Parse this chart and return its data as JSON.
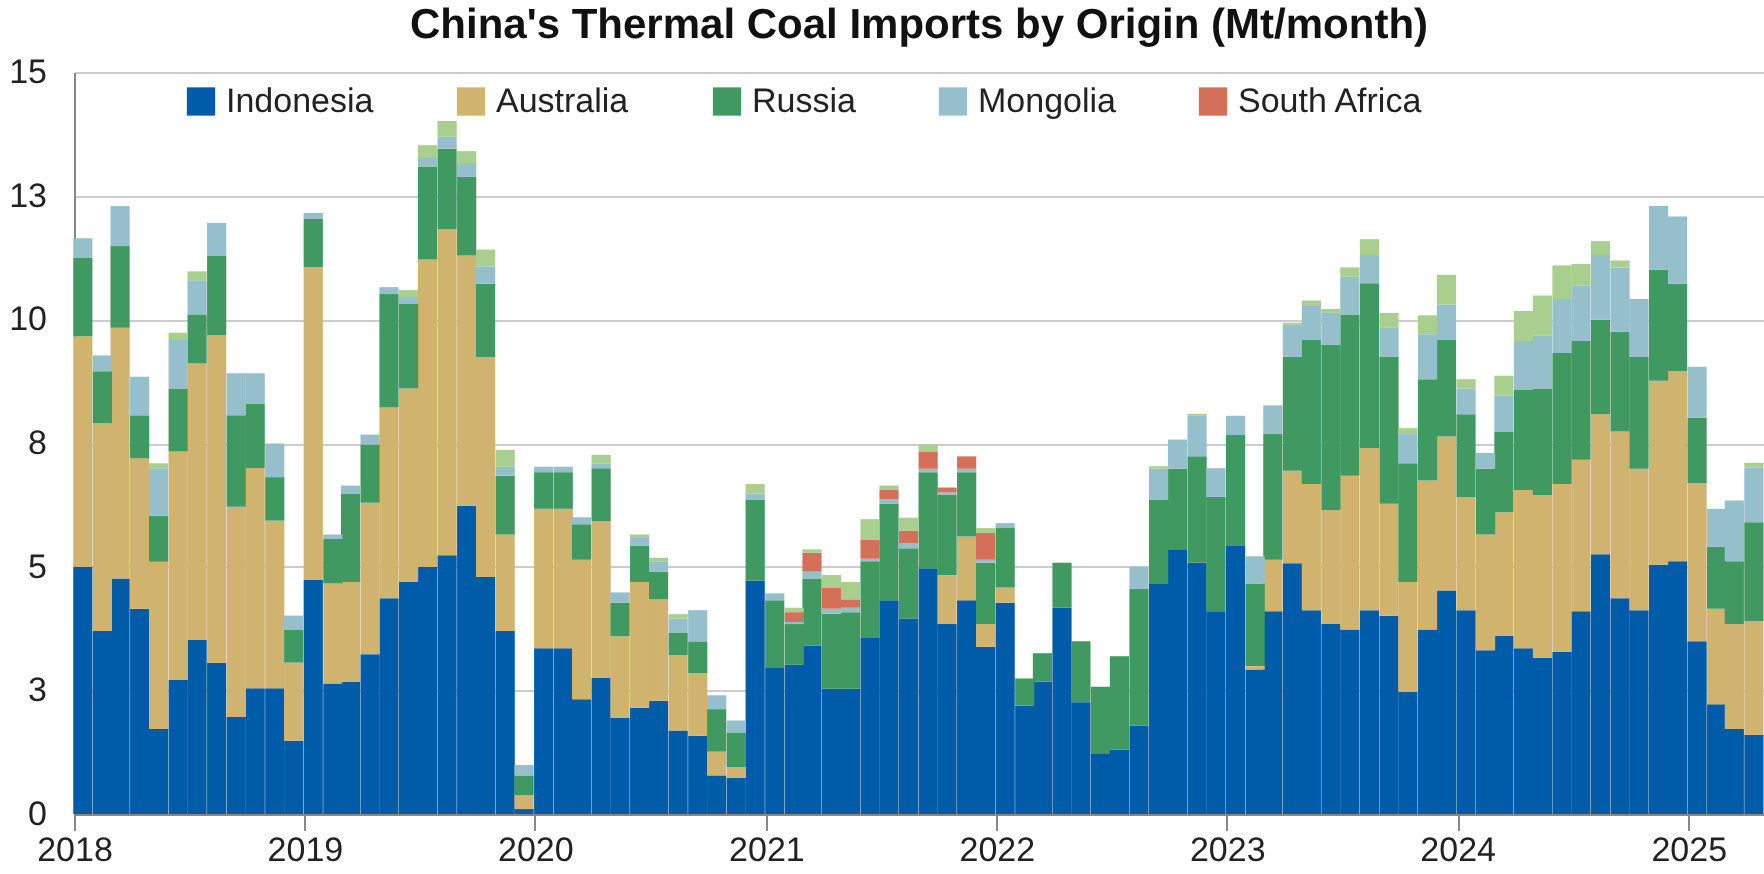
{
  "chart_data": {
    "type": "bar",
    "title": "China's Thermal Coal Imports by Origin (Mt/month)",
    "stacked": true,
    "x": [
      "2018-01-15",
      "2018-02-15",
      "2018-03-15",
      "2018-04-15",
      "2018-05-15",
      "2018-06-15",
      "2018-07-15",
      "2018-08-15",
      "2018-09-15",
      "2018-10-15",
      "2018-11-15",
      "2018-12-15",
      "2019-01-15",
      "2019-02-15",
      "2019-03-15",
      "2019-04-15",
      "2019-05-15",
      "2019-06-15",
      "2019-07-15",
      "2019-08-15",
      "2019-09-15",
      "2019-10-15",
      "2019-11-15",
      "2019-12-15",
      "2020-01-15",
      "2020-02-15",
      "2020-03-15",
      "2020-04-15",
      "2020-05-15",
      "2020-06-15",
      "2020-07-15",
      "2020-08-15",
      "2020-09-15",
      "2020-10-15",
      "2020-11-15",
      "2020-12-15",
      "2021-01-15",
      "2021-02-15",
      "2021-03-15",
      "2021-04-15",
      "2021-05-15",
      "2021-06-15",
      "2021-07-15",
      "2021-08-15",
      "2021-09-15",
      "2021-10-15",
      "2021-11-15",
      "2021-12-15",
      "2022-01-15",
      "2022-02-15",
      "2022-03-15",
      "2022-04-15",
      "2022-05-15",
      "2022-06-15",
      "2022-07-15",
      "2022-08-15",
      "2022-09-15",
      "2022-10-15",
      "2022-11-15",
      "2022-12-15",
      "2023-01-15",
      "2023-02-15",
      "2023-03-15",
      "2023-04-15",
      "2023-05-15",
      "2023-06-15",
      "2023-07-15",
      "2023-08-15",
      "2023-09-15",
      "2023-10-15",
      "2023-11-15",
      "2023-12-15",
      "2024-01-15",
      "2024-02-15",
      "2024-03-15",
      "2024-04-15",
      "2024-05-15",
      "2024-06-15",
      "2024-07-15",
      "2024-08-15",
      "2024-09-15",
      "2024-10-15",
      "2024-11-15",
      "2024-12-15",
      "2025-01-15",
      "2025-02-15",
      "2025-03-15",
      "2025-04-15"
    ],
    "series": [
      {
        "name": "Indonesia",
        "color": "#005ca8",
        "values": [
          5.0,
          3.7,
          4.76,
          4.15,
          1.72,
          2.71,
          3.52,
          3.06,
          1.96,
          2.54,
          2.54,
          1.48,
          4.73,
          2.64,
          2.67,
          3.23,
          4.36,
          4.69,
          5.0,
          5.23,
          6.23,
          4.79,
          3.7,
          0.1,
          3.35,
          3.35,
          2.32,
          2.75,
          1.94,
          2.15,
          2.29,
          1.69,
          1.58,
          0.78,
          0.73,
          4.72,
          2.95,
          3.02,
          3.4,
          2.53,
          2.53,
          3.56,
          4.32,
          3.95,
          4.97,
          3.84,
          4.32,
          3.38,
          4.27,
          2.19,
          2.68,
          4.17,
          2.26,
          1.23,
          1.3,
          1.79,
          4.65,
          5.35,
          5.08,
          4.1,
          5.42,
          2.92,
          4.1,
          5.07,
          4.12,
          3.84,
          3.73,
          4.12,
          4.01,
          2.47,
          3.73,
          4.52,
          4.12,
          3.31,
          3.6,
          3.35,
          3.16,
          3.28,
          4.1,
          5.25,
          4.36,
          4.12,
          5.04,
          5.11,
          3.49,
          2.22,
          1.72,
          1.6
        ]
      },
      {
        "name": "Australia",
        "color": "#cfb36f",
        "values": [
          4.66,
          4.2,
          5.07,
          3.04,
          3.38,
          4.62,
          5.59,
          6.62,
          4.25,
          4.45,
          3.39,
          1.58,
          6.32,
          2.02,
          2.02,
          3.06,
          3.86,
          3.91,
          6.21,
          6.59,
          5.06,
          4.45,
          1.95,
          0.28,
          2.82,
          2.82,
          2.82,
          3.17,
          1.65,
          2.54,
          2.05,
          1.52,
          1.27,
          0.48,
          0.22,
          0,
          0,
          0,
          0,
          0,
          0,
          0,
          0,
          0,
          0,
          0.99,
          1.29,
          0.46,
          0.31,
          0,
          0,
          0,
          0,
          0,
          0,
          0,
          0,
          0,
          0,
          0,
          0,
          0.07,
          1.04,
          1.87,
          2.55,
          2.3,
          3.11,
          3.28,
          2.26,
          2.22,
          3.01,
          3.11,
          2.29,
          2.34,
          2.5,
          3.2,
          3.29,
          3.39,
          3.06,
          2.83,
          3.37,
          2.86,
          3.72,
          3.84,
          3.2,
          1.93,
          2.12,
          2.3
        ]
      },
      {
        "name": "Russia",
        "color": "#3f9960",
        "values": [
          1.58,
          1.05,
          1.65,
          0.87,
          0.93,
          1.27,
          0.99,
          1.61,
          1.85,
          1.3,
          0.88,
          0.67,
          0.98,
          0.9,
          1.79,
          1.18,
          2.29,
          1.71,
          1.88,
          1.63,
          1.59,
          1.48,
          1.19,
          0.4,
          0.74,
          0.74,
          0.72,
          1.07,
          0.68,
          0.73,
          0.56,
          0.46,
          0.64,
          0.86,
          0.7,
          1.64,
          1.37,
          0.82,
          1.36,
          1.52,
          1.55,
          1.55,
          1.95,
          1.42,
          1.94,
          1.62,
          1.3,
          1.24,
          1.2,
          0.55,
          0.57,
          0.91,
          1.23,
          1.34,
          1.89,
          2.76,
          1.71,
          1.63,
          2.15,
          2.31,
          2.24,
          1.67,
          2.54,
          2.3,
          2.92,
          3.35,
          3.26,
          3.33,
          2.98,
          2.4,
          2.05,
          1.96,
          1.67,
          1.33,
          1.63,
          2.02,
          2.15,
          2.65,
          2.4,
          1.91,
          2.02,
          2.26,
          2.24,
          1.77,
          1.32,
          1.25,
          1.27,
          2.0
        ]
      },
      {
        "name": "Mongolia",
        "color": "#95bfca",
        "values": [
          0.4,
          0.32,
          0.81,
          0.78,
          0.96,
          1.0,
          0.69,
          0.66,
          0.85,
          0.62,
          0.68,
          0.28,
          0.12,
          0.09,
          0.16,
          0.2,
          0.14,
          0.14,
          0.19,
          0.24,
          0.28,
          0.35,
          0.18,
          0.21,
          0.11,
          0.11,
          0.14,
          0.1,
          0.21,
          0.16,
          0.21,
          0.28,
          0.63,
          0.28,
          0.24,
          0.12,
          0.14,
          0.04,
          0.14,
          0.1,
          0.09,
          0.05,
          0.09,
          0.1,
          0.07,
          0.05,
          0.07,
          0.06,
          0.1,
          0,
          0,
          0,
          0,
          0,
          0,
          0.45,
          0.62,
          0.59,
          0.82,
          0.58,
          0.39,
          0.55,
          0.58,
          0.65,
          0.68,
          0.64,
          0.76,
          0.57,
          0.59,
          0.59,
          0.91,
          0.71,
          0.52,
          0.32,
          0.73,
          0.99,
          1.08,
          1.09,
          1.13,
          1.31,
          1.3,
          1.17,
          1.29,
          1.36,
          1.03,
          0.77,
          1.23,
          1.1
        ]
      },
      {
        "name": "South Africa",
        "color": "#d4705a",
        "values": [
          0,
          0,
          0,
          0,
          0,
          0,
          0,
          0,
          0,
          0,
          0,
          0,
          0,
          0,
          0,
          0,
          0,
          0,
          0,
          0,
          0,
          0,
          0,
          0,
          0,
          0,
          0,
          0,
          0,
          0,
          0,
          0,
          0,
          0,
          0,
          0,
          0,
          0.2,
          0.38,
          0.43,
          0.17,
          0.38,
          0.19,
          0.26,
          0.35,
          0.1,
          0.25,
          0.54,
          0,
          0,
          0,
          0,
          0,
          0,
          0,
          0,
          0,
          0,
          0,
          0,
          0,
          0,
          0,
          0,
          0,
          0,
          0,
          0,
          0,
          0,
          0,
          0,
          0,
          0,
          0,
          0,
          0,
          0,
          0,
          0,
          0,
          0,
          0,
          0,
          0,
          0,
          0,
          0
        ]
      },
      {
        "color": "#a8cf8e",
        "values": [
          0,
          0,
          0,
          0,
          0.1,
          0.13,
          0.18,
          0,
          0,
          0,
          0,
          0,
          0,
          0,
          0,
          0,
          0,
          0.14,
          0.24,
          0.32,
          0.24,
          0.34,
          0.34,
          0,
          0,
          0,
          0,
          0.17,
          0,
          0.07,
          0.07,
          0.09,
          0,
          0,
          0,
          0.19,
          0,
          0.09,
          0.07,
          0.25,
          0.35,
          0.42,
          0.09,
          0.26,
          0.14,
          0,
          0,
          0.1,
          0,
          0,
          0,
          0,
          0,
          0,
          0,
          0,
          0.05,
          0,
          0.04,
          0,
          0,
          0,
          0,
          0.04,
          0.11,
          0.08,
          0.19,
          0.32,
          0.29,
          0.12,
          0.38,
          0.6,
          0.19,
          0,
          0.4,
          0.61,
          0.8,
          0.68,
          0.43,
          0.28,
          0.14,
          0,
          0,
          0,
          0,
          0,
          0,
          0.1
        ]
      }
    ],
    "xlim": [
      "2018-01",
      "2025-05"
    ],
    "xticks": [
      "2018",
      "2019",
      "2020",
      "2021",
      "2022",
      "2023",
      "2024",
      "2025"
    ],
    "ylim": [
      0,
      15
    ],
    "yticks": [
      0,
      {
        "value": 2.5,
        "label": "3"
      },
      5,
      {
        "value": 7.5,
        "label": "8"
      },
      10,
      {
        "value": 12.5,
        "label": "13"
      },
      15
    ],
    "grid": "y",
    "legend": "top"
  }
}
